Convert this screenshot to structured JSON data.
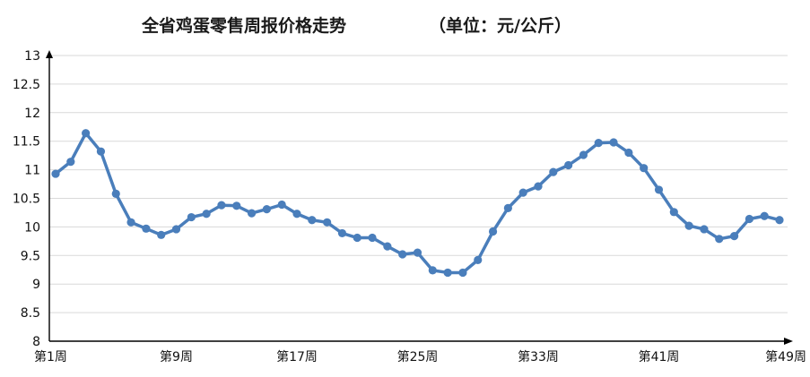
{
  "chart_data": {
    "type": "line",
    "title": "全省鸡蛋零售周报价格走势",
    "subtitle": "（单位：元/公斤）",
    "xlabel": "",
    "ylabel": "",
    "ylim": [
      8,
      13
    ],
    "yticks": [
      "8",
      "8.5",
      "9",
      "9.5",
      "10",
      "10.5",
      "11",
      "11.5",
      "12",
      "12.5",
      "13"
    ],
    "grid": true,
    "legend": "none",
    "categories": [
      "第1周",
      "第2周",
      "第3周",
      "第4周",
      "第5周",
      "第6周",
      "第7周",
      "第8周",
      "第9周",
      "第10周",
      "第11周",
      "第12周",
      "第13周",
      "第14周",
      "第15周",
      "第16周",
      "第17周",
      "第18周",
      "第19周",
      "第20周",
      "第21周",
      "第22周",
      "第23周",
      "第24周",
      "第25周",
      "第26周",
      "第27周",
      "第28周",
      "第29周",
      "第30周",
      "第31周",
      "第32周",
      "第33周",
      "第34周",
      "第35周",
      "第36周",
      "第37周",
      "第38周",
      "第39周",
      "第40周",
      "第41周",
      "第42周",
      "第43周",
      "第44周",
      "第45周",
      "第46周",
      "第47周",
      "第48周",
      "第49周"
    ],
    "xtick_labels": [
      "第1周",
      "第9周",
      "第17周",
      "第25周",
      "第33周",
      "第41周",
      "第49周"
    ],
    "series": [
      {
        "color": "#4a7ebb",
        "values": [
          10.93,
          11.14,
          11.64,
          11.32,
          10.58,
          10.08,
          9.97,
          9.86,
          9.96,
          10.17,
          10.23,
          10.38,
          10.37,
          10.24,
          10.31,
          10.39,
          10.23,
          10.12,
          10.08,
          9.89,
          9.81,
          9.81,
          9.66,
          9.52,
          9.55,
          9.24,
          9.2,
          9.2,
          9.42,
          9.92,
          10.33,
          10.6,
          10.71,
          10.96,
          11.08,
          11.26,
          11.47,
          11.48,
          11.3,
          11.03,
          10.65,
          10.26,
          10.02,
          9.96,
          9.79,
          9.84,
          10.14,
          10.19,
          10.12
        ]
      }
    ]
  }
}
